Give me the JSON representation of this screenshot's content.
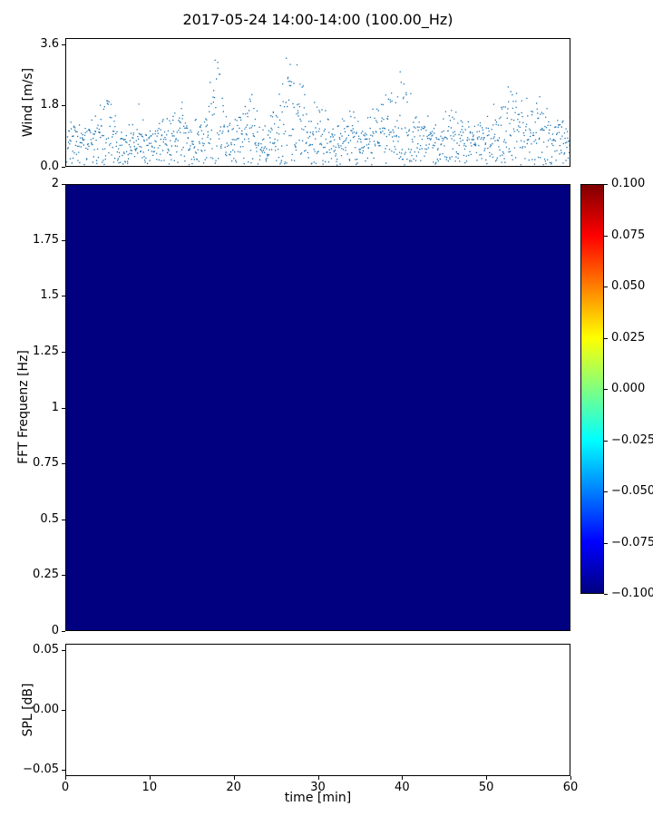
{
  "figure": {
    "title": "2017-05-24 14:00-14:00 (100.00_Hz)",
    "background": "#ffffff"
  },
  "chart_data": [
    {
      "type": "scatter",
      "name": "wind-speed",
      "title": "2017-05-24 14:00-14:00 (100.00_Hz)",
      "ylabel": "Wind [m/s]",
      "xlim": [
        0,
        60
      ],
      "ylim": [
        0,
        3.78
      ],
      "yticks": [
        {
          "v": 0.0,
          "label": "0.0"
        },
        {
          "v": 1.8,
          "label": "1.8"
        },
        {
          "v": 3.6,
          "label": "3.6"
        }
      ],
      "marker": {
        "color": "#1f77b4",
        "size": 1.3
      },
      "n_points": 1350,
      "seed": 20170524,
      "noise_sd": 0.5,
      "envelope_t_v": [
        [
          0,
          1.0
        ],
        [
          2,
          1.1
        ],
        [
          4,
          1.5
        ],
        [
          5,
          1.6
        ],
        [
          6,
          1.0
        ],
        [
          7,
          0.8
        ],
        [
          9,
          1.2
        ],
        [
          11,
          1.2
        ],
        [
          12,
          1.4
        ],
        [
          14,
          1.5
        ],
        [
          15,
          1.0
        ],
        [
          16,
          1.2
        ],
        [
          17,
          1.8
        ],
        [
          18,
          2.9
        ],
        [
          19,
          1.6
        ],
        [
          20,
          1.3
        ],
        [
          21,
          1.6
        ],
        [
          22,
          1.8
        ],
        [
          23,
          1.0
        ],
        [
          23.8,
          0.8
        ],
        [
          25,
          2.0
        ],
        [
          26,
          2.6
        ],
        [
          27,
          2.8
        ],
        [
          28,
          2.2
        ],
        [
          29,
          1.9
        ],
        [
          30,
          1.7
        ],
        [
          31.5,
          1.0
        ],
        [
          33,
          1.3
        ],
        [
          34,
          1.5
        ],
        [
          35,
          1.2
        ],
        [
          36,
          1.3
        ],
        [
          37,
          1.5
        ],
        [
          38,
          1.7
        ],
        [
          39,
          2.4
        ],
        [
          40,
          2.8
        ],
        [
          41,
          1.8
        ],
        [
          42,
          1.3
        ],
        [
          44,
          0.9
        ],
        [
          46,
          1.3
        ],
        [
          47,
          1.4
        ],
        [
          48.5,
          0.9
        ],
        [
          50,
          1.2
        ],
        [
          51,
          1.3
        ],
        [
          52,
          1.8
        ],
        [
          53,
          2.3
        ],
        [
          54,
          1.7
        ],
        [
          55,
          1.5
        ],
        [
          56.5,
          1.6
        ],
        [
          58,
          1.3
        ],
        [
          60,
          1.0
        ]
      ]
    },
    {
      "type": "heatmap",
      "name": "fft-spectrogram",
      "ylabel": "FFT Frequenz [Hz]",
      "xlim": [
        0,
        60
      ],
      "ylim": [
        0,
        2
      ],
      "yticks": [
        {
          "v": 0,
          "label": "0"
        },
        {
          "v": 0.25,
          "label": "0.25"
        },
        {
          "v": 0.5,
          "label": "0.5"
        },
        {
          "v": 0.75,
          "label": "0.75"
        },
        {
          "v": 1,
          "label": "1"
        },
        {
          "v": 1.25,
          "label": "1.25"
        },
        {
          "v": 1.5,
          "label": "1.5"
        },
        {
          "v": 1.75,
          "label": "1.75"
        },
        {
          "v": 2,
          "label": "2"
        }
      ],
      "uniform_value": -0.1,
      "fill_color": "#000080",
      "colorbar": {
        "vmin": -0.1,
        "vmax": 0.1,
        "colormap": "jet",
        "tick_labels": [
          "0.100",
          "0.075",
          "0.050",
          "0.025",
          "0.000",
          "−0.025",
          "−0.050",
          "−0.075",
          "−0.100"
        ],
        "gradient_bottom_to_top": [
          "#000080",
          "#0000ff",
          "#0080ff",
          "#00ffff",
          "#80ff80",
          "#ffff00",
          "#ff8000",
          "#ff0000",
          "#800000"
        ]
      }
    },
    {
      "type": "line",
      "name": "spl",
      "ylabel": "SPL [dB]",
      "xlabel": "time [min]",
      "xlim": [
        0,
        60
      ],
      "ylim": [
        -0.0555,
        0.0555
      ],
      "yticks": [
        {
          "v": 0.05,
          "label": "0.05"
        },
        {
          "v": 0.0,
          "label": "0.00"
        },
        {
          "v": -0.05,
          "label": "−0.05"
        }
      ],
      "xticks": [
        {
          "v": 0,
          "label": "0"
        },
        {
          "v": 10,
          "label": "10"
        },
        {
          "v": 20,
          "label": "20"
        },
        {
          "v": 30,
          "label": "30"
        },
        {
          "v": 40,
          "label": "40"
        },
        {
          "v": 50,
          "label": "50"
        },
        {
          "v": 60,
          "label": "60"
        }
      ],
      "values": []
    }
  ]
}
